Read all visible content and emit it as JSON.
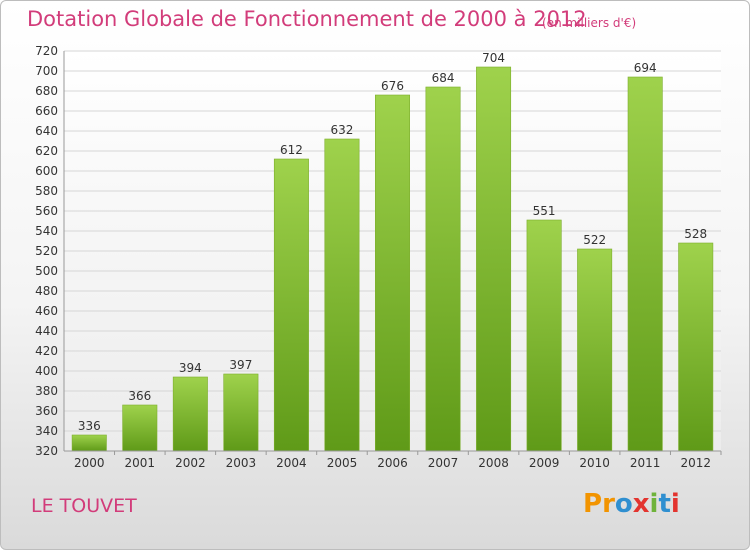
{
  "chart_data": {
    "type": "bar",
    "title": "Dotation Globale de Fonctionnement de 2000 à 2012",
    "unit_note": "(en milliers d'€)",
    "categories": [
      "2000",
      "2001",
      "2002",
      "2003",
      "2004",
      "2005",
      "2006",
      "2007",
      "2008",
      "2009",
      "2010",
      "2011",
      "2012"
    ],
    "values": [
      336,
      366,
      394,
      397,
      612,
      632,
      676,
      684,
      704,
      551,
      522,
      694,
      528
    ],
    "ylim": [
      320,
      720
    ],
    "ytick_step": 20,
    "grid": true,
    "bar_color_top": "#9fd24c",
    "bar_color_bottom": "#5f9a18"
  },
  "place_label": "LE TOUVET",
  "logo": {
    "text": "Proxiti",
    "letter_colors": [
      "#f29400",
      "#f29400",
      "#2f8fd0",
      "#e3342f",
      "#6fb33b",
      "#2f8fd0",
      "#e3342f"
    ]
  }
}
